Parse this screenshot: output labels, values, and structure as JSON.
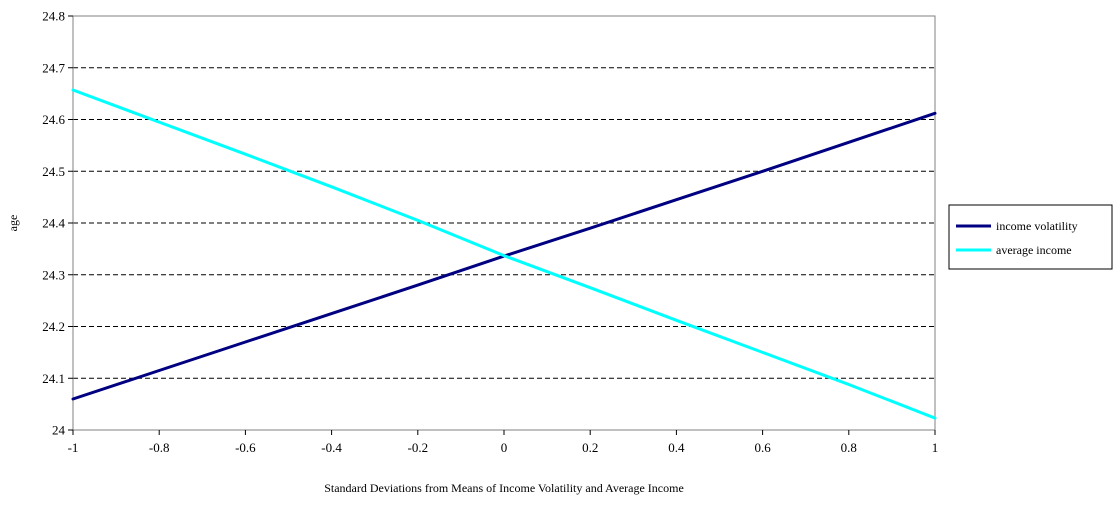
{
  "chart_data": {
    "type": "line",
    "title": "",
    "xlabel": "Standard Deviations from Means of Income Volatility and Average Income",
    "ylabel": "age",
    "xlim": [
      -1,
      1
    ],
    "ylim": [
      24,
      24.8
    ],
    "x_ticks": [
      "-1",
      "-0.8",
      "-0.6",
      "-0.4",
      "-0.2",
      "0",
      "0.2",
      "0.4",
      "0.6",
      "0.8",
      "1"
    ],
    "y_ticks": [
      "24",
      "24.1",
      "24.2",
      "24.3",
      "24.4",
      "24.5",
      "24.6",
      "24.7",
      "24.8"
    ],
    "grid": "horizontal dashed",
    "legend_position": "right",
    "x": [
      -1,
      -0.8,
      -0.6,
      -0.4,
      -0.2,
      0,
      0.2,
      0.4,
      0.6,
      0.8,
      1
    ],
    "series": [
      {
        "name": "income volatility",
        "color": "#000080",
        "values": [
          24.06,
          24.115,
          24.17,
          24.225,
          24.28,
          24.336,
          24.39,
          24.445,
          24.5,
          24.556,
          24.612
        ]
      },
      {
        "name": "average income",
        "color": "#00FFFF",
        "values": [
          24.657,
          24.595,
          24.533,
          24.47,
          24.405,
          24.337,
          24.275,
          24.212,
          24.15,
          24.088,
          24.023
        ]
      }
    ]
  }
}
